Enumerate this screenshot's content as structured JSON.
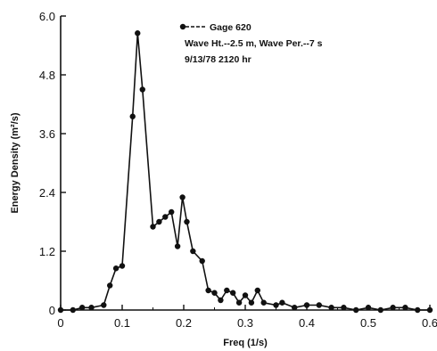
{
  "chart_data": {
    "type": "line",
    "xlabel": "Freq (1/s)",
    "ylabel": "Energy Density (m²/s)",
    "xlim": [
      0,
      0.6
    ],
    "ylim": [
      0,
      6.0
    ],
    "x_ticks": [
      "0",
      "0.1",
      "0.2",
      "0.3",
      "0.4",
      "0.5",
      "0.6"
    ],
    "y_ticks": [
      "0",
      "1.2",
      "2.4",
      "3.6",
      "4.8",
      "6.0"
    ],
    "grid": false,
    "legend_position": "top-right",
    "annotations": [
      "Wave Ht.--2.5 m, Wave Per.--7 s",
      "9/13/78  2120 hr"
    ],
    "series": [
      {
        "name": "Gage 620",
        "marker": "filled-circle",
        "color": "#111111",
        "points": [
          [
            0.0,
            0.0
          ],
          [
            0.02,
            0.0
          ],
          [
            0.035,
            0.05
          ],
          [
            0.05,
            0.05
          ],
          [
            0.07,
            0.1
          ],
          [
            0.08,
            0.5
          ],
          [
            0.09,
            0.85
          ],
          [
            0.1,
            0.9
          ],
          [
            0.117,
            3.95
          ],
          [
            0.125,
            5.65
          ],
          [
            0.133,
            4.5
          ],
          [
            0.15,
            1.7
          ],
          [
            0.16,
            1.8
          ],
          [
            0.17,
            1.9
          ],
          [
            0.18,
            2.0
          ],
          [
            0.19,
            1.3
          ],
          [
            0.198,
            2.3
          ],
          [
            0.205,
            1.8
          ],
          [
            0.215,
            1.2
          ],
          [
            0.23,
            1.0
          ],
          [
            0.24,
            0.4
          ],
          [
            0.25,
            0.35
          ],
          [
            0.26,
            0.2
          ],
          [
            0.27,
            0.4
          ],
          [
            0.28,
            0.35
          ],
          [
            0.29,
            0.15
          ],
          [
            0.3,
            0.3
          ],
          [
            0.31,
            0.15
          ],
          [
            0.32,
            0.4
          ],
          [
            0.33,
            0.15
          ],
          [
            0.35,
            0.1
          ],
          [
            0.36,
            0.15
          ],
          [
            0.38,
            0.05
          ],
          [
            0.4,
            0.1
          ],
          [
            0.42,
            0.1
          ],
          [
            0.44,
            0.05
          ],
          [
            0.46,
            0.05
          ],
          [
            0.48,
            0.0
          ],
          [
            0.5,
            0.05
          ],
          [
            0.52,
            0.0
          ],
          [
            0.54,
            0.05
          ],
          [
            0.56,
            0.05
          ],
          [
            0.58,
            0.0
          ],
          [
            0.6,
            0.0
          ]
        ]
      }
    ]
  }
}
